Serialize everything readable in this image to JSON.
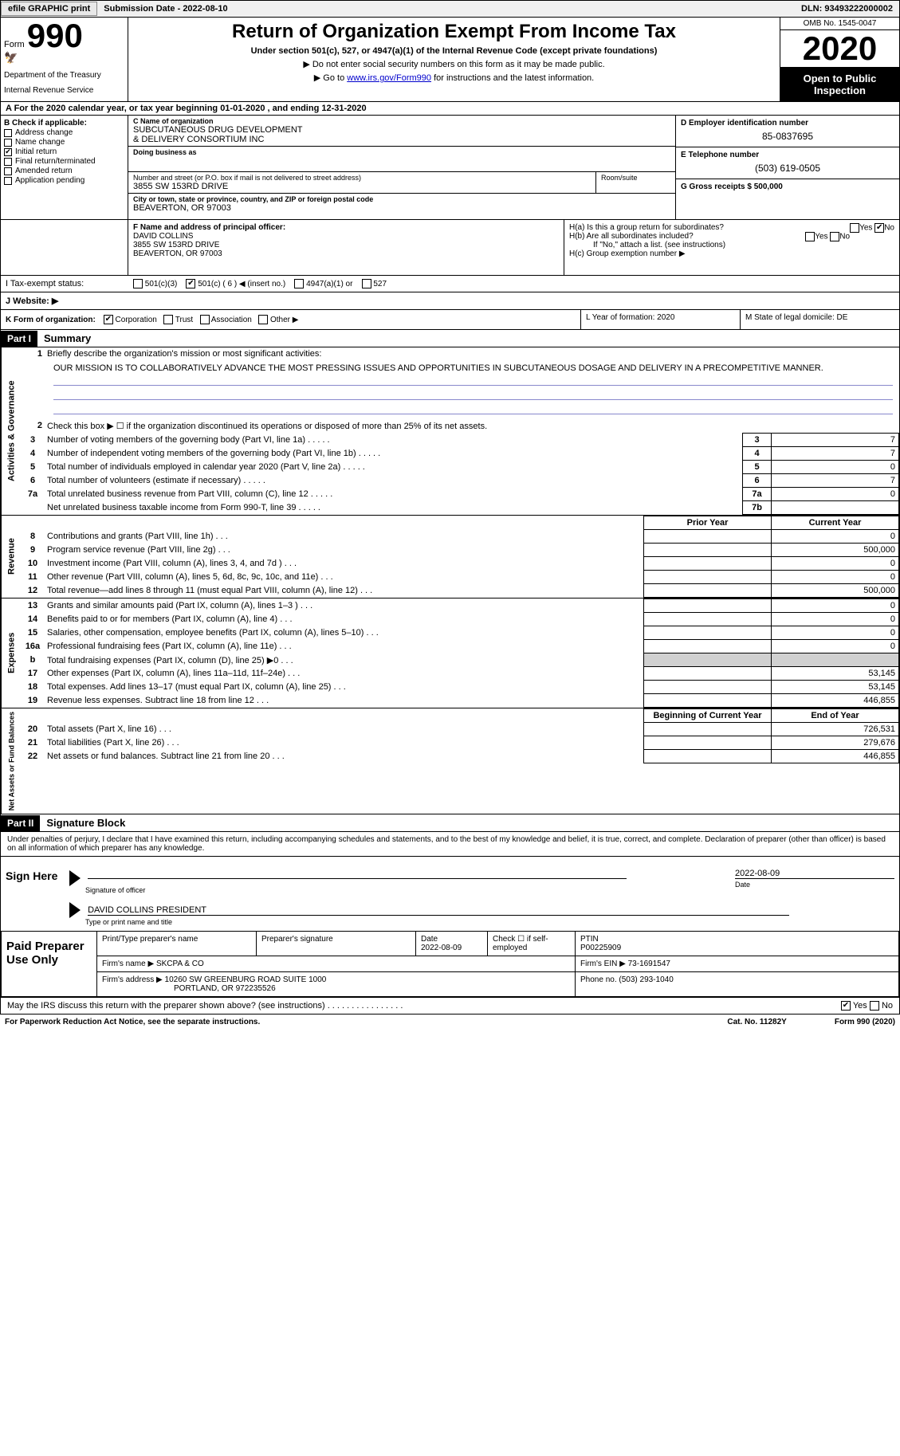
{
  "topbar": {
    "efile_btn": "efile GRAPHIC print",
    "submission_label": "Submission Date - 2022-08-10",
    "dln_label": "DLN: 93493222000002"
  },
  "header": {
    "form_word": "Form",
    "form_number": "990",
    "dept": "Department of the Treasury",
    "irs": "Internal Revenue Service",
    "title": "Return of Organization Exempt From Income Tax",
    "subtitle": "Under section 501(c), 527, or 4947(a)(1) of the Internal Revenue Code (except private foundations)",
    "line1": "▶ Do not enter social security numbers on this form as it may be made public.",
    "line2_pre": "▶ Go to ",
    "line2_link": "www.irs.gov/Form990",
    "line2_post": " for instructions and the latest information.",
    "omb": "OMB No. 1545-0047",
    "year": "2020",
    "open": "Open to Public Inspection"
  },
  "taxyear": "A For the 2020 calendar year, or tax year beginning 01-01-2020    , and ending 12-31-2020",
  "section_b": {
    "title": "B Check if applicable:",
    "items": [
      {
        "label": "Address change",
        "checked": false
      },
      {
        "label": "Name change",
        "checked": false
      },
      {
        "label": "Initial return",
        "checked": true
      },
      {
        "label": "Final return/terminated",
        "checked": false
      },
      {
        "label": "Amended return",
        "checked": false
      },
      {
        "label": "Application pending",
        "checked": false
      }
    ]
  },
  "section_c": {
    "name_label": "C Name of organization",
    "name1": "SUBCUTANEOUS DRUG DEVELOPMENT",
    "name2": "& DELIVERY CONSORTIUM INC",
    "dba_label": "Doing business as",
    "addr_label": "Number and street (or P.O. box if mail is not delivered to street address)",
    "addr": "3855 SW 153RD DRIVE",
    "suite_label": "Room/suite",
    "city_label": "City or town, state or province, country, and ZIP or foreign postal code",
    "city": "BEAVERTON, OR  97003"
  },
  "section_d": {
    "label": "D Employer identification number",
    "value": "85-0837695"
  },
  "section_e": {
    "label": "E Telephone number",
    "value": "(503) 619-0505"
  },
  "section_g": {
    "label": "G Gross receipts $ 500,000"
  },
  "section_f": {
    "label": "F Name and address of principal officer:",
    "name": "DAVID COLLINS",
    "addr1": "3855 SW 153RD DRIVE",
    "addr2": "BEAVERTON, OR  97003"
  },
  "section_h": {
    "ha": "H(a)  Is this a group return for subordinates?",
    "hb": "H(b)  Are all subordinates included?",
    "hb_note": "If \"No,\" attach a list. (see instructions)",
    "hc": "H(c)  Group exemption number ▶",
    "yes": "Yes",
    "no": "No"
  },
  "section_i": {
    "label": "I    Tax-exempt status:",
    "opts": [
      "501(c)(3)",
      "501(c) ( 6 ) ◀ (insert no.)",
      "4947(a)(1) or",
      "527"
    ],
    "checked_index": 1
  },
  "section_j": {
    "label": "J    Website: ▶"
  },
  "section_k": {
    "label": "K Form of organization:",
    "opts": [
      "Corporation",
      "Trust",
      "Association",
      "Other ▶"
    ],
    "checked_index": 0
  },
  "section_l": "L Year of formation: 2020",
  "section_m": "M State of legal domicile: DE",
  "part1": {
    "header": "Part I",
    "title": "Summary",
    "mission_label": "1   Briefly describe the organization's mission or most significant activities:",
    "mission": "OUR MISSION IS TO COLLABORATIVELY ADVANCE THE MOST PRESSING ISSUES AND OPPORTUNITIES IN SUBCUTANEOUS DOSAGE AND DELIVERY IN A PRECOMPETITIVE MANNER.",
    "line2": "Check this box ▶ ☐  if the organization discontinued its operations or disposed of more than 25% of its net assets.",
    "governance": {
      "vert": "Activities & Governance",
      "rows": [
        {
          "n": "3",
          "t": "Number of voting members of the governing body (Part VI, line 1a)",
          "k": "3",
          "v": "7"
        },
        {
          "n": "4",
          "t": "Number of independent voting members of the governing body (Part VI, line 1b)",
          "k": "4",
          "v": "7"
        },
        {
          "n": "5",
          "t": "Total number of individuals employed in calendar year 2020 (Part V, line 2a)",
          "k": "5",
          "v": "0"
        },
        {
          "n": "6",
          "t": "Total number of volunteers (estimate if necessary)",
          "k": "6",
          "v": "7"
        },
        {
          "n": "7a",
          "t": "Total unrelated business revenue from Part VIII, column (C), line 12",
          "k": "7a",
          "v": "0"
        },
        {
          "n": "",
          "t": "Net unrelated business taxable income from Form 990-T, line 39",
          "k": "7b",
          "v": ""
        }
      ]
    },
    "col_headers": {
      "prior": "Prior Year",
      "current": "Current Year",
      "begin": "Beginning of Current Year",
      "end": "End of Year"
    },
    "revenue": {
      "vert": "Revenue",
      "rows": [
        {
          "n": "8",
          "t": "Contributions and grants (Part VIII, line 1h)",
          "p": "",
          "c": "0"
        },
        {
          "n": "9",
          "t": "Program service revenue (Part VIII, line 2g)",
          "p": "",
          "c": "500,000"
        },
        {
          "n": "10",
          "t": "Investment income (Part VIII, column (A), lines 3, 4, and 7d )",
          "p": "",
          "c": "0"
        },
        {
          "n": "11",
          "t": "Other revenue (Part VIII, column (A), lines 5, 6d, 8c, 9c, 10c, and 11e)",
          "p": "",
          "c": "0"
        },
        {
          "n": "12",
          "t": "Total revenue—add lines 8 through 11 (must equal Part VIII, column (A), line 12)",
          "p": "",
          "c": "500,000"
        }
      ]
    },
    "expenses": {
      "vert": "Expenses",
      "rows": [
        {
          "n": "13",
          "t": "Grants and similar amounts paid (Part IX, column (A), lines 1–3 )",
          "p": "",
          "c": "0"
        },
        {
          "n": "14",
          "t": "Benefits paid to or for members (Part IX, column (A), line 4)",
          "p": "",
          "c": "0"
        },
        {
          "n": "15",
          "t": "Salaries, other compensation, employee benefits (Part IX, column (A), lines 5–10)",
          "p": "",
          "c": "0"
        },
        {
          "n": "16a",
          "t": "Professional fundraising fees (Part IX, column (A), line 11e)",
          "p": "",
          "c": "0"
        },
        {
          "n": "b",
          "t": "Total fundraising expenses (Part IX, column (D), line 25) ▶0",
          "p": "SHADE",
          "c": "SHADE"
        },
        {
          "n": "17",
          "t": "Other expenses (Part IX, column (A), lines 11a–11d, 11f–24e)",
          "p": "",
          "c": "53,145"
        },
        {
          "n": "18",
          "t": "Total expenses. Add lines 13–17 (must equal Part IX, column (A), line 25)",
          "p": "",
          "c": "53,145"
        },
        {
          "n": "19",
          "t": "Revenue less expenses. Subtract line 18 from line 12",
          "p": "",
          "c": "446,855"
        }
      ]
    },
    "netassets": {
      "vert": "Net Assets or Fund Balances",
      "rows": [
        {
          "n": "20",
          "t": "Total assets (Part X, line 16)",
          "p": "",
          "c": "726,531"
        },
        {
          "n": "21",
          "t": "Total liabilities (Part X, line 26)",
          "p": "",
          "c": "279,676"
        },
        {
          "n": "22",
          "t": "Net assets or fund balances. Subtract line 21 from line 20",
          "p": "",
          "c": "446,855"
        }
      ]
    }
  },
  "part2": {
    "header": "Part II",
    "title": "Signature Block",
    "intro": "Under penalties of perjury, I declare that I have examined this return, including accompanying schedules and statements, and to the best of my knowledge and belief, it is true, correct, and complete. Declaration of preparer (other than officer) is based on all information of which preparer has any knowledge.",
    "sign_here": "Sign Here",
    "sig_officer": "Signature of officer",
    "sig_date_val": "2022-08-09",
    "sig_date": "Date",
    "officer_name": "DAVID COLLINS  PRESIDENT",
    "officer_label": "Type or print name and title",
    "paid": "Paid Preparer Use Only",
    "prep_name_label": "Print/Type preparer's name",
    "prep_sig_label": "Preparer's signature",
    "date_label": "Date",
    "date_val": "2022-08-09",
    "check_self": "Check ☐ if self-employed",
    "ptin_label": "PTIN",
    "ptin": "P00225909",
    "firm_name_label": "Firm's name     ▶",
    "firm_name": "SKCPA & CO",
    "firm_ein_label": "Firm's EIN ▶",
    "firm_ein": "73-1691547",
    "firm_addr_label": "Firm's address ▶",
    "firm_addr1": "10260 SW GREENBURG ROAD SUITE 1000",
    "firm_addr2": "PORTLAND, OR  972235526",
    "phone_label": "Phone no.",
    "phone": "(503) 293-1040",
    "irs_discuss": "May the IRS discuss this return with the preparer shown above? (see instructions)",
    "yes": "Yes",
    "no": "No"
  },
  "footer": {
    "left": "For Paperwork Reduction Act Notice, see the separate instructions.",
    "center": "Cat. No. 11282Y",
    "right": "Form 990 (2020)"
  }
}
